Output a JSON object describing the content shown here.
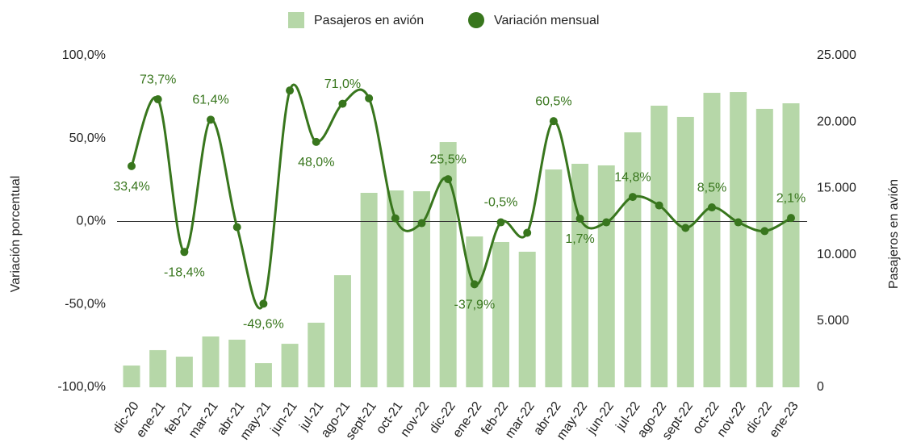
{
  "chart_data": {
    "type": "bar-line",
    "categories": [
      "dic-20",
      "ene-21",
      "feb-21",
      "mar-21",
      "abr-21",
      "may-21",
      "jun-21",
      "jul-21",
      "ago-21",
      "sept-21",
      "oct-21",
      "nov-22",
      "dic-22",
      "ene-22",
      "feb-22",
      "mar-22",
      "abr-22",
      "may-22",
      "jun-22",
      "jul-22",
      "ago-22",
      "sept-22",
      "oct-22",
      "nov-22",
      "dic-22",
      "ene-23"
    ],
    "series": [
      {
        "name": "Pasajeros en avión",
        "type": "bar",
        "axis": "y2",
        "color": "#b6d7a8",
        "values": [
          1640,
          2800,
          2310,
          3830,
          3590,
          1820,
          3280,
          4870,
          8450,
          14660,
          14840,
          14780,
          18490,
          11370,
          10950,
          10220,
          16420,
          16850,
          16730,
          19220,
          21230,
          20380,
          22200,
          22260,
          20990,
          21410
        ]
      },
      {
        "name": "Variación mensual",
        "type": "line",
        "axis": "y",
        "color": "#38761d",
        "values": [
          33.4,
          73.7,
          -18.4,
          61.4,
          -3.4,
          -49.6,
          79.0,
          48.0,
          71.0,
          74.3,
          1.9,
          -1.0,
          25.5,
          -37.9,
          -0.5,
          -6.8,
          60.5,
          1.7,
          -0.5,
          14.8,
          9.7,
          -3.9,
          8.5,
          -0.5,
          -5.8,
          2.1
        ],
        "value_labels": [
          "33,4%",
          "73,7%",
          "-18,4%",
          "61,4%",
          null,
          "-49,6%",
          null,
          "48,0%",
          "71,0%",
          null,
          null,
          null,
          "25,5%",
          "-37,9%",
          "-0,5%",
          null,
          "60,5%",
          "1,7%",
          null,
          "14,8%",
          null,
          null,
          "8,5%",
          null,
          null,
          "2,1%"
        ]
      }
    ],
    "y_label": "Variación porcentual",
    "y2_label": "Pasajeros en avión",
    "ylim": [
      -100,
      100
    ],
    "yticks": [
      {
        "value": -100,
        "label": "-100,0%"
      },
      {
        "value": -50,
        "label": "-50,0%"
      },
      {
        "value": 0,
        "label": "0,0%"
      },
      {
        "value": 50,
        "label": "50,0%"
      },
      {
        "value": 100,
        "label": "100,0%"
      }
    ],
    "y2lim": [
      0,
      25000
    ],
    "y2ticks": [
      0,
      {
        "value": 5000,
        "label": "5.000"
      },
      {
        "value": 10000,
        "label": "10.000"
      },
      {
        "value": 15000,
        "label": "15.000"
      },
      {
        "value": 20000,
        "label": "20.000"
      },
      {
        "value": 25000,
        "label": "25.000"
      }
    ],
    "legend": "top"
  }
}
